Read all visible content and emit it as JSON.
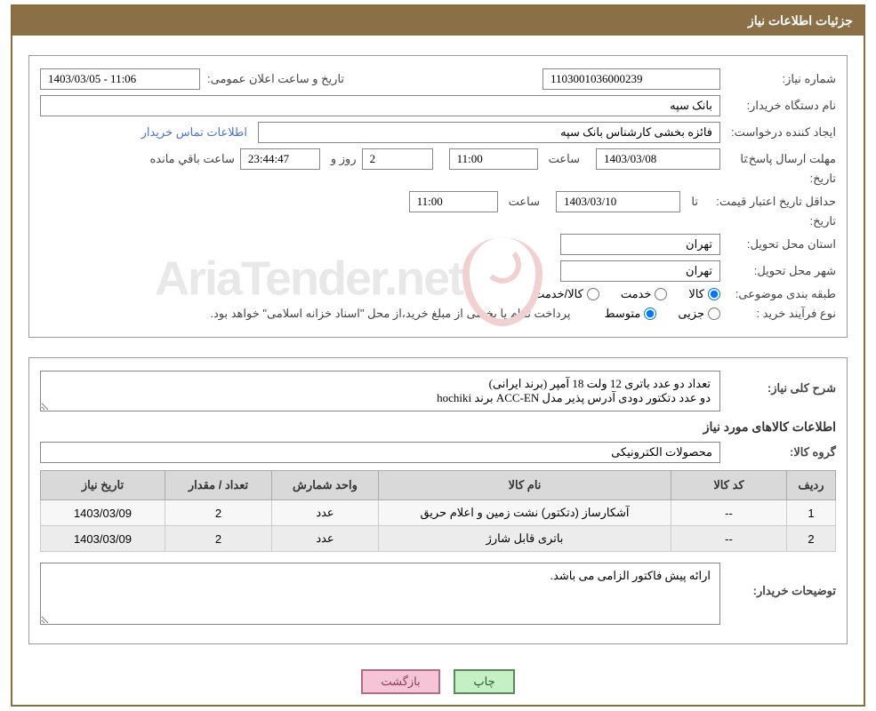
{
  "colors": {
    "header_bg": "#8b6f47",
    "frame_border": "#8a6d3b",
    "th_bg": "#d9d9d9",
    "btn_green_bg": "#c5f0c5",
    "btn_pink_bg": "#f5c5d5"
  },
  "header": {
    "title": "جزئیات اطلاعات نیاز"
  },
  "fields": {
    "need_number": {
      "label": "شماره نیاز:",
      "value": "1103001036000239"
    },
    "announce": {
      "label": "تاریخ و ساعت اعلان عمومی:",
      "value": "1403/03/05 - 11:06"
    },
    "buyer_org": {
      "label": "نام دستگاه خریدار:",
      "value": "بانک سپه"
    },
    "requester": {
      "label": "ایجاد کننده درخواست:",
      "value": "فائزه بخشی کارشناس بانک سپه"
    },
    "contact_link": "اطلاعات تماس خریدار",
    "deadline": {
      "label": "مهلت ارسال پاسخ:",
      "sub": "تا تاریخ:",
      "date": "1403/03/08",
      "time_label": "ساعت",
      "time": "11:00",
      "days": "2",
      "days_label": "روز و",
      "remain": "23:44:47",
      "remain_label": "ساعت باقي مانده"
    },
    "validity": {
      "label": "حداقل تاریخ اعتبار قیمت:",
      "sub": "تا تاریخ:",
      "date": "1403/03/10",
      "time_label": "ساعت",
      "time": "11:00"
    },
    "province": {
      "label": "استان محل تحویل:",
      "value": "تهران"
    },
    "city": {
      "label": "شهر محل تحویل:",
      "value": "تهران"
    },
    "category": {
      "label": "طبقه بندی موضوعی:",
      "options": {
        "goods": "کالا",
        "service": "خدمت",
        "goods_service": "کالا/خدمت"
      },
      "selected": "goods"
    },
    "purchase_type": {
      "label": "نوع فرآیند خرید :",
      "options": {
        "minor": "جزیی",
        "medium": "متوسط"
      },
      "selected": "medium",
      "note": "پرداخت تمام یا بخشی از مبلغ خرید،از محل \"اسناد خزانه اسلامی\" خواهد بود."
    }
  },
  "summary": {
    "label": "شرح کلی نیاز:",
    "text": "تعداد دو عدد باتری 12 ولت 18 آمپر (برند ایرانی)\nدو عدد دتکتور دودی آدرس پذیر مدل ACC-EN برند hochiki"
  },
  "items_section": {
    "title": "اطلاعات کالاهای مورد نیاز"
  },
  "group": {
    "label": "گروه کالا:",
    "value": "محصولات الکترونیکی"
  },
  "table": {
    "columns": [
      "ردیف",
      "کد کالا",
      "نام کالا",
      "واحد شمارش",
      "تعداد / مقدار",
      "تاریخ نیاز"
    ],
    "col_widths": [
      "55px",
      "130px",
      "auto",
      "120px",
      "120px",
      "140px"
    ],
    "rows": [
      [
        "1",
        "--",
        "آشکارساز (دتکتور) نشت زمین و اعلام حریق",
        "عدد",
        "2",
        "1403/03/09"
      ],
      [
        "2",
        "--",
        "باتری قابل شارژ",
        "عدد",
        "2",
        "1403/03/09"
      ]
    ]
  },
  "buyer_notes": {
    "label": "توضیحات خریدار:",
    "text": "ارائه پیش فاکتور الزامی می باشد."
  },
  "buttons": {
    "print": "چاپ",
    "back": "بازگشت"
  },
  "watermark": "AriaTender.net"
}
